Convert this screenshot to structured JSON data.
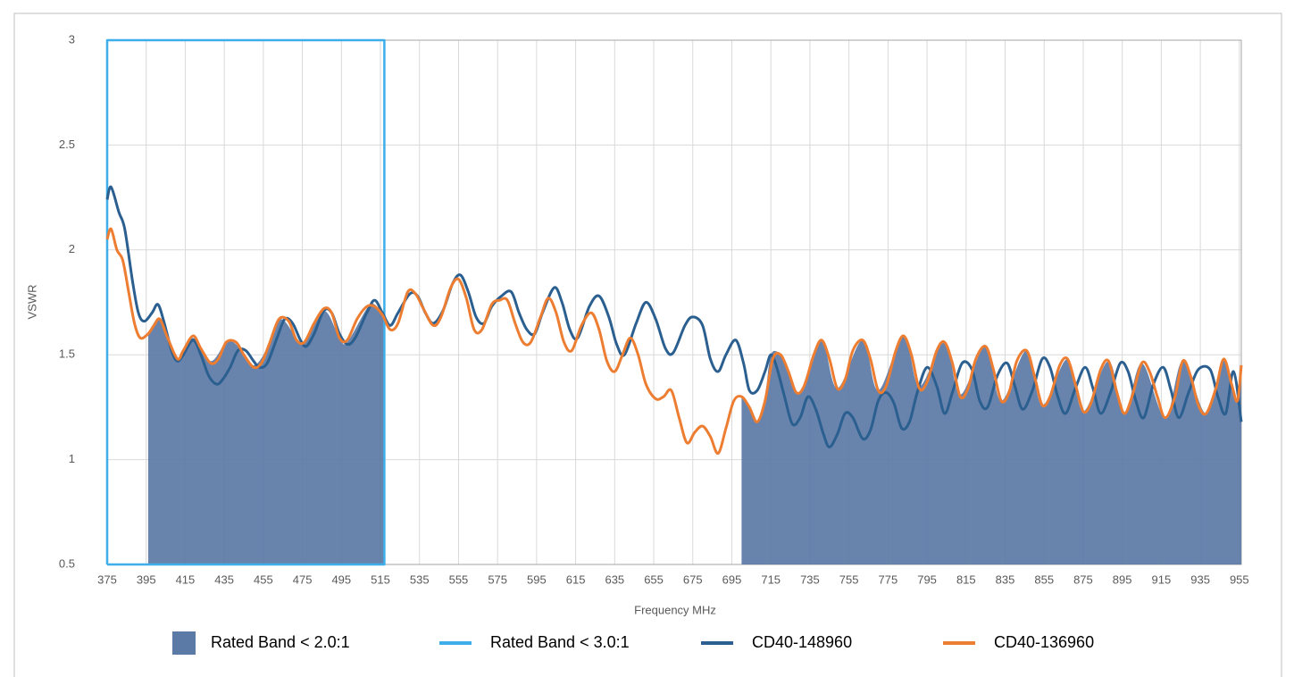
{
  "chart_data": {
    "type": "line",
    "x_label": "Frequency MHz",
    "y_label": "VSWR",
    "xlim": [
      375,
      956
    ],
    "ylim": [
      0.5,
      3
    ],
    "xticks": [
      375,
      395,
      415,
      435,
      455,
      475,
      495,
      515,
      535,
      555,
      575,
      595,
      615,
      635,
      655,
      675,
      695,
      715,
      735,
      755,
      775,
      795,
      815,
      835,
      855,
      875,
      895,
      915,
      935,
      955
    ],
    "yticks": [
      0.5,
      1,
      1.5,
      2,
      2.5,
      3
    ],
    "grid": true,
    "legend": "bottom",
    "series": [
      {
        "name": "Rated Band < 2.0:1",
        "type": "area",
        "color": "#5b7aa6",
        "smooth": true,
        "x": [
          396,
          401,
          406,
          411,
          419,
          428,
          436,
          441,
          450,
          458,
          464,
          472,
          476,
          486,
          494,
          498,
          508,
          512,
          517,
          600,
          700,
          704,
          708,
          712,
          715,
          720,
          724,
          728,
          732,
          741,
          749,
          762,
          770,
          783,
          791,
          804,
          812,
          825,
          833,
          846,
          854,
          867,
          875,
          888,
          896,
          905,
          917,
          926,
          938,
          947,
          954,
          956
        ],
        "values": [
          1.6,
          1.67,
          1.6,
          1.48,
          1.58,
          1.47,
          1.56,
          1.55,
          1.45,
          1.55,
          1.67,
          1.58,
          1.56,
          1.71,
          1.58,
          1.56,
          1.72,
          1.74,
          1.68,
          null,
          1.3,
          1.26,
          1.18,
          1.3,
          1.5,
          1.5,
          1.42,
          1.32,
          1.35,
          1.57,
          1.34,
          1.57,
          1.33,
          1.59,
          1.35,
          1.56,
          1.31,
          1.54,
          1.28,
          1.52,
          1.26,
          1.48,
          1.23,
          1.47,
          1.22,
          1.46,
          1.2,
          1.47,
          1.22,
          1.48,
          1.28,
          1.45
        ]
      },
      {
        "name": "Rated Band < 3.0:1",
        "type": "line",
        "color": "#3caee9",
        "smooth": false,
        "x": [
          375,
          375,
          517,
          517,
          375
        ],
        "values": [
          0.5,
          3,
          3,
          0.5,
          0.5
        ]
      },
      {
        "name": "CD40-148960",
        "type": "line",
        "color": "#2a5f90",
        "smooth": true,
        "x": [
          375,
          377,
          381,
          384,
          388,
          391,
          394,
          398,
          401,
          404,
          408,
          411,
          414,
          419,
          423,
          427,
          431,
          434,
          438,
          442,
          446,
          450,
          453,
          457,
          462,
          466,
          470,
          474,
          477,
          481,
          486,
          490,
          494,
          498,
          502,
          508,
          512,
          516,
          520,
          524,
          530,
          534,
          538,
          542,
          547,
          552,
          556,
          560,
          564,
          568,
          572,
          577,
          582,
          586,
          590,
          594,
          598,
          604,
          608,
          612,
          616,
          622,
          627,
          632,
          636,
          640,
          646,
          651,
          656,
          661,
          665,
          671,
          675,
          680,
          684,
          688,
          692,
          697,
          701,
          704,
          708,
          712,
          715,
          718,
          722,
          726,
          730,
          734,
          738,
          742,
          745,
          749,
          753,
          757,
          762,
          766,
          770,
          774,
          778,
          782,
          786,
          790,
          795,
          800,
          804,
          808,
          813,
          818,
          822,
          826,
          831,
          836,
          840,
          844,
          849,
          854,
          858,
          862,
          866,
          871,
          876,
          880,
          884,
          889,
          894,
          898,
          902,
          906,
          911,
          916,
          920,
          924,
          929,
          934,
          940,
          944,
          948,
          952,
          956
        ],
        "values": [
          2.24,
          2.3,
          2.18,
          2.1,
          1.85,
          1.7,
          1.66,
          1.7,
          1.74,
          1.66,
          1.52,
          1.47,
          1.5,
          1.57,
          1.5,
          1.4,
          1.36,
          1.38,
          1.44,
          1.52,
          1.52,
          1.47,
          1.44,
          1.46,
          1.58,
          1.67,
          1.65,
          1.57,
          1.54,
          1.6,
          1.71,
          1.7,
          1.6,
          1.55,
          1.58,
          1.7,
          1.76,
          1.7,
          1.64,
          1.7,
          1.79,
          1.78,
          1.7,
          1.65,
          1.71,
          1.84,
          1.88,
          1.8,
          1.68,
          1.65,
          1.73,
          1.78,
          1.8,
          1.7,
          1.62,
          1.6,
          1.7,
          1.82,
          1.75,
          1.62,
          1.58,
          1.73,
          1.78,
          1.68,
          1.55,
          1.5,
          1.65,
          1.75,
          1.67,
          1.53,
          1.51,
          1.64,
          1.68,
          1.64,
          1.48,
          1.42,
          1.5,
          1.57,
          1.46,
          1.33,
          1.33,
          1.42,
          1.5,
          1.44,
          1.3,
          1.17,
          1.2,
          1.3,
          1.24,
          1.12,
          1.06,
          1.12,
          1.22,
          1.2,
          1.1,
          1.14,
          1.28,
          1.32,
          1.27,
          1.15,
          1.18,
          1.32,
          1.44,
          1.35,
          1.22,
          1.32,
          1.46,
          1.43,
          1.28,
          1.25,
          1.4,
          1.46,
          1.35,
          1.24,
          1.33,
          1.48,
          1.44,
          1.3,
          1.22,
          1.34,
          1.44,
          1.34,
          1.22,
          1.32,
          1.46,
          1.42,
          1.28,
          1.2,
          1.36,
          1.44,
          1.33,
          1.2,
          1.32,
          1.43,
          1.43,
          1.3,
          1.22,
          1.42,
          1.18
        ]
      },
      {
        "name": "CD40-136960",
        "type": "line",
        "color": "#ed7d31",
        "smooth": true,
        "x": [
          375,
          377,
          380,
          383,
          386,
          389,
          392,
          396,
          399,
          402,
          406,
          411,
          414,
          419,
          423,
          428,
          432,
          436,
          441,
          445,
          450,
          454,
          458,
          463,
          468,
          472,
          476,
          481,
          486,
          490,
          494,
          498,
          503,
          508,
          512,
          516,
          520,
          524,
          529,
          533,
          537,
          542,
          546,
          551,
          555,
          559,
          563,
          567,
          572,
          576,
          580,
          584,
          588,
          592,
          597,
          601,
          605,
          609,
          613,
          618,
          623,
          627,
          631,
          635,
          639,
          643,
          647,
          651,
          656,
          660,
          664,
          668,
          672,
          676,
          680,
          684,
          688,
          692,
          696,
          700,
          704,
          708,
          712,
          716,
          720,
          724,
          728,
          732,
          737,
          741,
          745,
          749,
          753,
          757,
          762,
          766,
          770,
          774,
          779,
          783,
          787,
          791,
          795,
          800,
          804,
          808,
          812,
          816,
          820,
          825,
          829,
          833,
          837,
          841,
          846,
          850,
          854,
          858,
          863,
          867,
          871,
          875,
          879,
          884,
          888,
          892,
          896,
          900,
          905,
          909,
          913,
          917,
          922,
          926,
          930,
          934,
          938,
          943,
          947,
          951,
          954,
          956
        ],
        "values": [
          2.05,
          2.1,
          2.0,
          1.95,
          1.8,
          1.65,
          1.58,
          1.6,
          1.64,
          1.67,
          1.58,
          1.48,
          1.52,
          1.59,
          1.53,
          1.46,
          1.48,
          1.56,
          1.56,
          1.5,
          1.44,
          1.46,
          1.55,
          1.67,
          1.66,
          1.57,
          1.56,
          1.65,
          1.72,
          1.7,
          1.58,
          1.57,
          1.67,
          1.73,
          1.73,
          1.69,
          1.62,
          1.65,
          1.8,
          1.79,
          1.72,
          1.64,
          1.68,
          1.82,
          1.86,
          1.77,
          1.62,
          1.62,
          1.74,
          1.76,
          1.76,
          1.65,
          1.56,
          1.56,
          1.68,
          1.77,
          1.7,
          1.56,
          1.52,
          1.64,
          1.7,
          1.62,
          1.47,
          1.42,
          1.5,
          1.58,
          1.5,
          1.36,
          1.29,
          1.3,
          1.33,
          1.2,
          1.08,
          1.13,
          1.16,
          1.11,
          1.03,
          1.15,
          1.28,
          1.3,
          1.25,
          1.18,
          1.28,
          1.48,
          1.5,
          1.42,
          1.32,
          1.35,
          1.5,
          1.57,
          1.48,
          1.34,
          1.38,
          1.52,
          1.57,
          1.48,
          1.33,
          1.35,
          1.52,
          1.59,
          1.5,
          1.34,
          1.37,
          1.52,
          1.56,
          1.46,
          1.3,
          1.34,
          1.48,
          1.54,
          1.43,
          1.28,
          1.32,
          1.47,
          1.52,
          1.4,
          1.26,
          1.3,
          1.45,
          1.48,
          1.36,
          1.23,
          1.27,
          1.43,
          1.47,
          1.33,
          1.22,
          1.3,
          1.46,
          1.42,
          1.3,
          1.2,
          1.3,
          1.47,
          1.4,
          1.26,
          1.22,
          1.34,
          1.48,
          1.36,
          1.28,
          1.45
        ]
      }
    ]
  }
}
